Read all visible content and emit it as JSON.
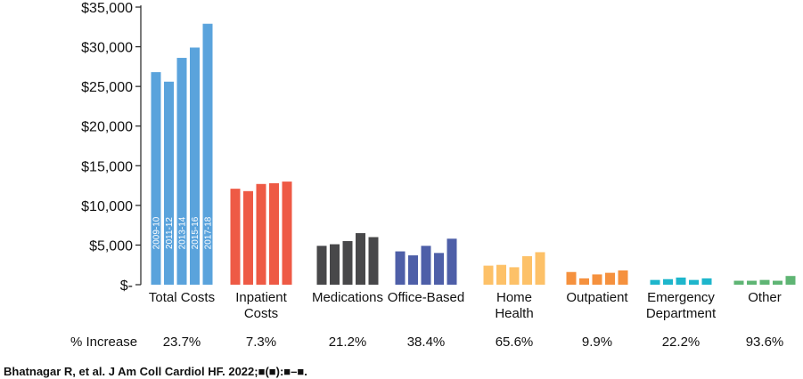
{
  "chart_data": {
    "type": "bar",
    "y_axis": {
      "ylim": [
        0,
        35000
      ],
      "ticks": [
        0,
        5000,
        10000,
        15000,
        20000,
        25000,
        30000,
        35000
      ],
      "tick_labels": [
        "$-",
        "$5,000",
        "$10,000",
        "$15,000",
        "$20,000",
        "$25,000",
        "$30,000",
        "$35,000"
      ]
    },
    "periods": [
      "2009-10",
      "2011-12",
      "2013-14",
      "2015-16",
      "2017-18"
    ],
    "categories": [
      {
        "label_lines": [
          "Total Costs"
        ],
        "color": "#5aa3dc",
        "values": [
          26800,
          25600,
          28600,
          29900,
          32900
        ],
        "pct_increase": "23.7%"
      },
      {
        "label_lines": [
          "Inpatient",
          "Costs"
        ],
        "color": "#ee5a45",
        "values": [
          12100,
          11800,
          12700,
          12800,
          13000
        ],
        "pct_increase": "7.3%"
      },
      {
        "label_lines": [
          "Medications"
        ],
        "color": "#48484a",
        "values": [
          4900,
          5100,
          5500,
          6500,
          6000
        ],
        "pct_increase": "21.2%"
      },
      {
        "label_lines": [
          "Office-Based"
        ],
        "color": "#4e5fa8",
        "values": [
          4200,
          3700,
          4900,
          4000,
          5800
        ],
        "pct_increase": "38.4%"
      },
      {
        "label_lines": [
          "Home",
          "Health"
        ],
        "color": "#fdc168",
        "values": [
          2400,
          2500,
          2200,
          3600,
          4100
        ],
        "pct_increase": "65.6%"
      },
      {
        "label_lines": [
          "Outpatient"
        ],
        "color": "#f5913e",
        "values": [
          1600,
          800,
          1300,
          1500,
          1800
        ],
        "pct_increase": "9.9%"
      },
      {
        "label_lines": [
          "Emergency",
          "Department"
        ],
        "color": "#1eb6cc",
        "values": [
          600,
          700,
          900,
          600,
          800
        ],
        "pct_increase": "22.2%"
      },
      {
        "label_lines": [
          "Other"
        ],
        "color": "#5fb574",
        "values": [
          500,
          500,
          600,
          500,
          1100
        ],
        "pct_increase": "93.6%"
      }
    ],
    "pct_row_label": "% Increase"
  },
  "citation": "Bhatnagar R, et al. J Am Coll Cardiol HF. 2022;■(■):■–■."
}
